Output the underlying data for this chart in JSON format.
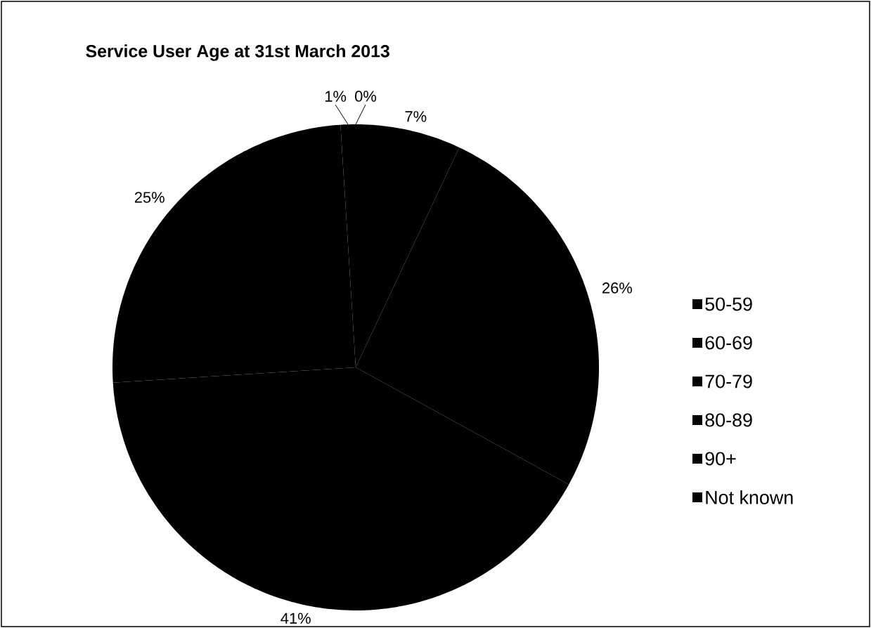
{
  "chart_data": {
    "type": "pie",
    "title": "Service User Age at 31st March 2013",
    "categories": [
      "50-59",
      "60-69",
      "70-79",
      "80-89",
      "90+",
      "Not known"
    ],
    "values": [
      0,
      7,
      26,
      41,
      25,
      1
    ],
    "colors": [
      "#000000",
      "#000000",
      "#000000",
      "#000000",
      "#000000",
      "#000000"
    ],
    "value_labels": [
      "0%",
      "7%",
      "26%",
      "41%",
      "25%",
      "1%"
    ],
    "legend": "right"
  }
}
